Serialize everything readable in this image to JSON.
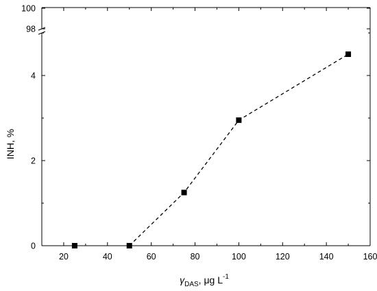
{
  "chart_data": {
    "type": "scatter",
    "xlabel": {
      "symbol": "γ",
      "subscript": "DAS",
      "suffix": ", μg L",
      "superscript": "-1"
    },
    "ylabel": "INH, %",
    "xlim": [
      10,
      160
    ],
    "xticks": [
      20,
      40,
      60,
      80,
      100,
      120,
      140,
      160
    ],
    "ylim_lower": [
      0,
      5
    ],
    "yticks_lower": [
      0,
      2,
      4
    ],
    "yticks_upper": [
      98,
      100
    ],
    "axis_break": true,
    "grid": false,
    "series": [
      {
        "marker": "square",
        "color": "#000000",
        "points": [
          {
            "x": 25,
            "y": 0.0
          },
          {
            "x": 50,
            "y": 0.0
          },
          {
            "x": 75,
            "y": 1.25
          },
          {
            "x": 100,
            "y": 2.95
          },
          {
            "x": 150,
            "y": 4.5
          }
        ]
      }
    ],
    "fit_line": {
      "style": "dashed",
      "color": "#000000",
      "points": [
        {
          "x": 50,
          "y": 0.0
        },
        {
          "x": 75,
          "y": 1.25
        },
        {
          "x": 100,
          "y": 2.95
        },
        {
          "x": 150,
          "y": 4.5
        }
      ]
    }
  }
}
